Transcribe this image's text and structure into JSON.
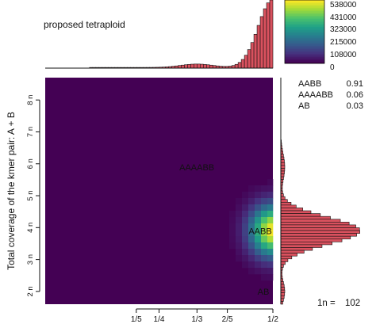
{
  "chart_data": {
    "type": "heatmap",
    "title": "proposed tetraploid",
    "ylabel": "Total coverage of the kmer pair: A + B",
    "xlabel": "",
    "x_ticks": [
      {
        "label": "1/5",
        "value": 0.2
      },
      {
        "label": "1/4",
        "value": 0.25
      },
      {
        "label": "1/3",
        "value": 0.3333
      },
      {
        "label": "2/5",
        "value": 0.4
      },
      {
        "label": "1/2",
        "value": 0.5
      }
    ],
    "y_ticks": [
      {
        "label": "2 n",
        "value": 2
      },
      {
        "label": "3 n",
        "value": 3
      },
      {
        "label": "4 n",
        "value": 4
      },
      {
        "label": "5 n",
        "value": 5
      },
      {
        "label": "6 n",
        "value": 6
      },
      {
        "label": "7 n",
        "value": 7
      },
      {
        "label": "8 n",
        "value": 8
      }
    ],
    "xlim": [
      0.0,
      0.5
    ],
    "ylim": [
      1.6,
      8.7
    ],
    "colorbar": {
      "labels": [
        "538000",
        "431000",
        "323000",
        "215000",
        "108000",
        "0"
      ],
      "values": [
        538000,
        431000,
        323000,
        215000,
        108000,
        0
      ],
      "colormap": [
        "#440154",
        "#46317e",
        "#365a8c",
        "#277e8e",
        "#1fa187",
        "#4ac16d",
        "#a0da39",
        "#fde725"
      ]
    },
    "peaks": [
      {
        "label": "AABB",
        "x": 0.5,
        "y": 3.9,
        "peak": 538000
      },
      {
        "label": "AAAABB",
        "x": 0.333,
        "y": 5.9,
        "peak": 0
      },
      {
        "label": "AB",
        "x": 0.5,
        "y": 2.0,
        "peak": 0
      }
    ],
    "proportions": [
      {
        "label": "AABB",
        "value": "0.91"
      },
      {
        "label": "AAAABB",
        "value": "0.06"
      },
      {
        "label": "AB",
        "value": "0.03"
      }
    ],
    "nlabel": "1n =",
    "nvalue": "102",
    "bar_color": "#d9515e",
    "background": "#440154"
  }
}
